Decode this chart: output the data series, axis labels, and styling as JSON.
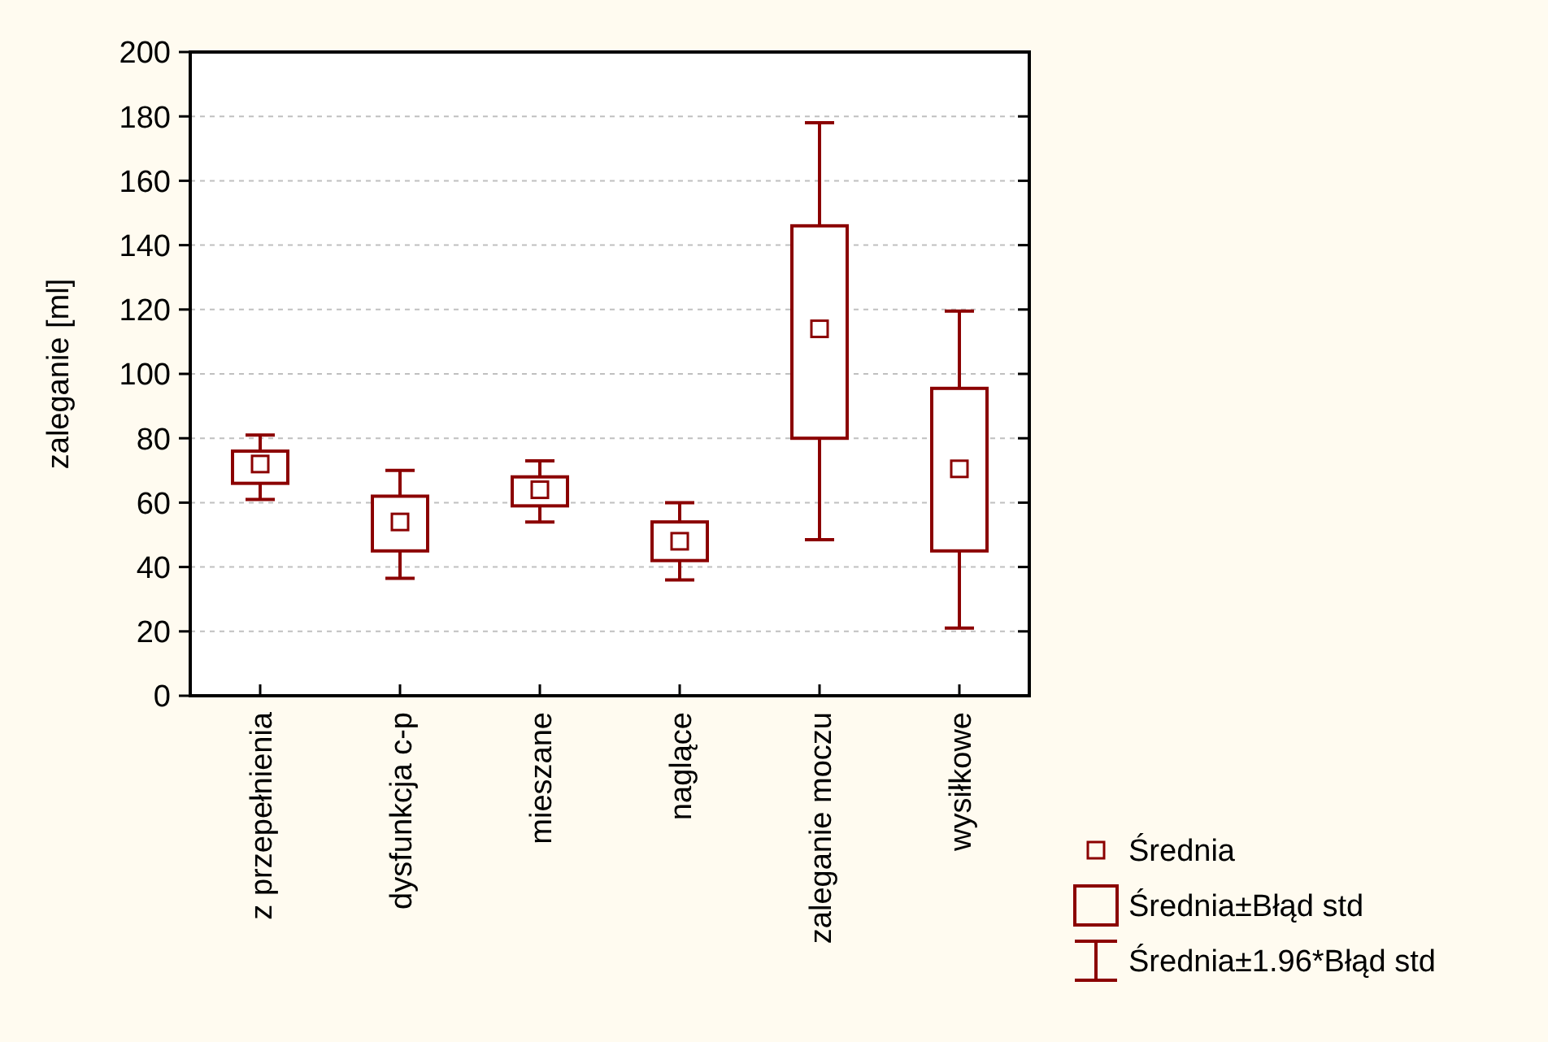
{
  "chart_data": {
    "type": "box",
    "ylabel": "zaleganie [ml]",
    "categories": [
      "z przepełnienia",
      "dysfunkcja c-p",
      "mieszane",
      "naglące",
      "zaleganie moczu",
      "wysiłkowe"
    ],
    "ylim": [
      0,
      200
    ],
    "yticks": [
      0,
      20,
      40,
      60,
      80,
      100,
      120,
      140,
      160,
      180,
      200
    ],
    "grid": "y",
    "marker": "square",
    "series": [
      {
        "color": "#8b0000",
        "boxes": [
          {
            "low": 61,
            "q1": 66,
            "q3": 76,
            "high": 81,
            "mean": 72
          },
          {
            "low": 36.5,
            "q1": 45,
            "q3": 62,
            "high": 70,
            "mean": 54
          },
          {
            "low": 54,
            "q1": 59,
            "q3": 68,
            "high": 73,
            "mean": 64
          },
          {
            "low": 36,
            "q1": 42,
            "q3": 54,
            "high": 60,
            "mean": 48
          },
          {
            "low": 48.5,
            "q1": 80,
            "q3": 146,
            "high": 178,
            "mean": 114
          },
          {
            "low": 21,
            "q1": 45,
            "q3": 95.5,
            "high": 119.5,
            "mean": 70.5
          }
        ]
      }
    ],
    "annotations": [
      "Średnia",
      "Średnia±Błąd std",
      "Średnia±1.96*Błąd std"
    ]
  }
}
